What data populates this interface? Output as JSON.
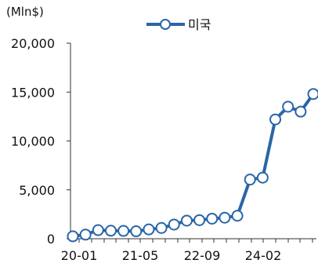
{
  "chart_data": {
    "type": "line",
    "unit_label": "(Mln$)",
    "series": [
      {
        "name": "미국",
        "color": "#2a66a6",
        "values": [
          250,
          420,
          880,
          820,
          800,
          760,
          950,
          1100,
          1450,
          1850,
          1900,
          2050,
          2150,
          2350,
          6050,
          6250,
          12200,
          13500,
          13000,
          14800
        ]
      }
    ],
    "x_tick_labels": [
      "20-01",
      "21-05",
      "22-09",
      "24-02"
    ],
    "y_ticks": [
      0,
      5000,
      10000,
      15000,
      20000
    ],
    "y_tick_labels": [
      "0",
      "5,000",
      "10,000",
      "15,000",
      "20,000"
    ],
    "ylim": [
      0,
      20000
    ],
    "legend": "top-center",
    "grid": false
  }
}
